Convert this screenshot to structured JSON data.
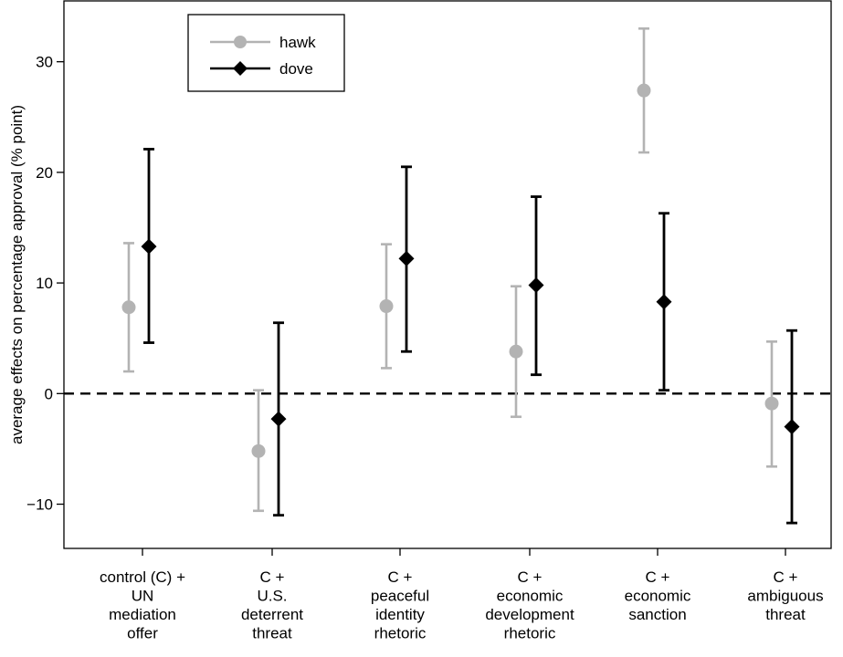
{
  "chart_data": {
    "type": "scatter",
    "title": "",
    "xlabel": "",
    "ylabel": "average effects on percentage approval (% point)",
    "ylim": [
      -14.0,
      35.5
    ],
    "yticks": [
      -10,
      0,
      10,
      20,
      30
    ],
    "ytick_labels": [
      "−10",
      "0",
      "10",
      "20",
      "30"
    ],
    "grid": false,
    "legend": {
      "placement": "top-left"
    },
    "reference_line": {
      "y": 0,
      "style": "dashed",
      "color": "#000000"
    },
    "categories": [
      {
        "id": "c1",
        "lines": [
          "control (C) +",
          "UN",
          "mediation",
          "offer"
        ]
      },
      {
        "id": "c2",
        "lines": [
          "C +",
          "U.S.",
          "deterrent",
          "threat"
        ]
      },
      {
        "id": "c3",
        "lines": [
          "C +",
          "peaceful",
          "identity",
          "rhetoric"
        ]
      },
      {
        "id": "c4",
        "lines": [
          "C +",
          "economic",
          "development",
          "rhetoric"
        ]
      },
      {
        "id": "c5",
        "lines": [
          "C +",
          "economic",
          "sanction"
        ]
      },
      {
        "id": "c6",
        "lines": [
          "C +",
          "ambiguous",
          "threat"
        ]
      }
    ],
    "series": [
      {
        "name": "hawk",
        "marker": "circle",
        "color": "#b3b3b3",
        "estimate": [
          7.8,
          -5.2,
          7.9,
          3.8,
          27.4,
          -0.9
        ],
        "lower": [
          2.0,
          -10.6,
          2.3,
          -2.1,
          21.8,
          -6.6
        ],
        "upper": [
          13.6,
          0.3,
          13.5,
          9.7,
          33.0,
          4.7
        ]
      },
      {
        "name": "dove",
        "marker": "diamond",
        "color": "#000000",
        "estimate": [
          13.3,
          -2.3,
          12.2,
          9.8,
          8.3,
          -3.0
        ],
        "lower": [
          4.6,
          -11.0,
          3.8,
          1.7,
          0.3,
          -11.7
        ],
        "upper": [
          22.1,
          6.4,
          20.5,
          17.8,
          16.3,
          5.7
        ]
      }
    ]
  }
}
